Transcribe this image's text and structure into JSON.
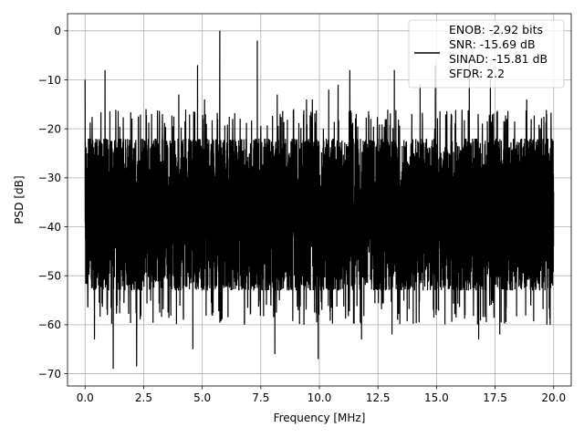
{
  "chart_data": {
    "type": "line",
    "title": "",
    "xlabel": "Frequency [MHz]",
    "ylabel": "PSD [dB]",
    "xlim": [
      -0.75,
      20.75
    ],
    "ylim": [
      -72.5,
      3.5
    ],
    "xticks": [
      0.0,
      2.5,
      5.0,
      7.5,
      10.0,
      12.5,
      15.0,
      17.5,
      20.0
    ],
    "xtick_labels": [
      "0.0",
      "2.5",
      "5.0",
      "7.5",
      "10.0",
      "12.5",
      "15.0",
      "17.5",
      "20.0"
    ],
    "yticks": [
      0,
      -10,
      -20,
      -30,
      -40,
      -50,
      -60,
      -70
    ],
    "ytick_labels": [
      "0",
      "−10",
      "−20",
      "−30",
      "−40",
      "−50",
      "−60",
      "−70"
    ],
    "grid": true,
    "legend_position": "top-right",
    "legend_entries": [
      "ENOB: -2.92 bits",
      "SNR: -15.69 dB",
      "SINAD: -15.81 dB",
      "SFDR: 2.2"
    ],
    "series": [
      {
        "color": "#000000",
        "x_range": [
          0.0,
          20.0
        ],
        "noise_band_db": [
          -55,
          -20
        ],
        "peaks": [
          {
            "x": 0.0,
            "y": -10
          },
          {
            "x": 0.85,
            "y": -8
          },
          {
            "x": 2.6,
            "y": -16
          },
          {
            "x": 3.3,
            "y": -17
          },
          {
            "x": 4.0,
            "y": -13
          },
          {
            "x": 4.8,
            "y": -7
          },
          {
            "x": 5.1,
            "y": -14
          },
          {
            "x": 5.75,
            "y": 0
          },
          {
            "x": 6.3,
            "y": -18
          },
          {
            "x": 7.35,
            "y": -2
          },
          {
            "x": 8.2,
            "y": -13
          },
          {
            "x": 8.9,
            "y": -16
          },
          {
            "x": 9.45,
            "y": -14
          },
          {
            "x": 9.7,
            "y": -14
          },
          {
            "x": 10.4,
            "y": -12
          },
          {
            "x": 10.8,
            "y": -11
          },
          {
            "x": 11.3,
            "y": -8
          },
          {
            "x": 12.2,
            "y": -18
          },
          {
            "x": 13.2,
            "y": -8
          },
          {
            "x": 14.3,
            "y": -11
          },
          {
            "x": 14.95,
            "y": -7
          },
          {
            "x": 16.4,
            "y": -6
          },
          {
            "x": 17.3,
            "y": -10
          },
          {
            "x": 18.0,
            "y": -18
          },
          {
            "x": 18.85,
            "y": -14
          },
          {
            "x": 19.7,
            "y": -17
          }
        ],
        "troughs": [
          {
            "x": 0.4,
            "y": -63
          },
          {
            "x": 1.2,
            "y": -69
          },
          {
            "x": 2.2,
            "y": -68.5
          },
          {
            "x": 4.6,
            "y": -65
          },
          {
            "x": 6.8,
            "y": -60
          },
          {
            "x": 8.1,
            "y": -66
          },
          {
            "x": 9.95,
            "y": -67
          },
          {
            "x": 11.8,
            "y": -63
          },
          {
            "x": 13.1,
            "y": -62
          },
          {
            "x": 16.8,
            "y": -63
          },
          {
            "x": 17.7,
            "y": -62
          },
          {
            "x": 19.85,
            "y": -60
          }
        ]
      }
    ]
  }
}
